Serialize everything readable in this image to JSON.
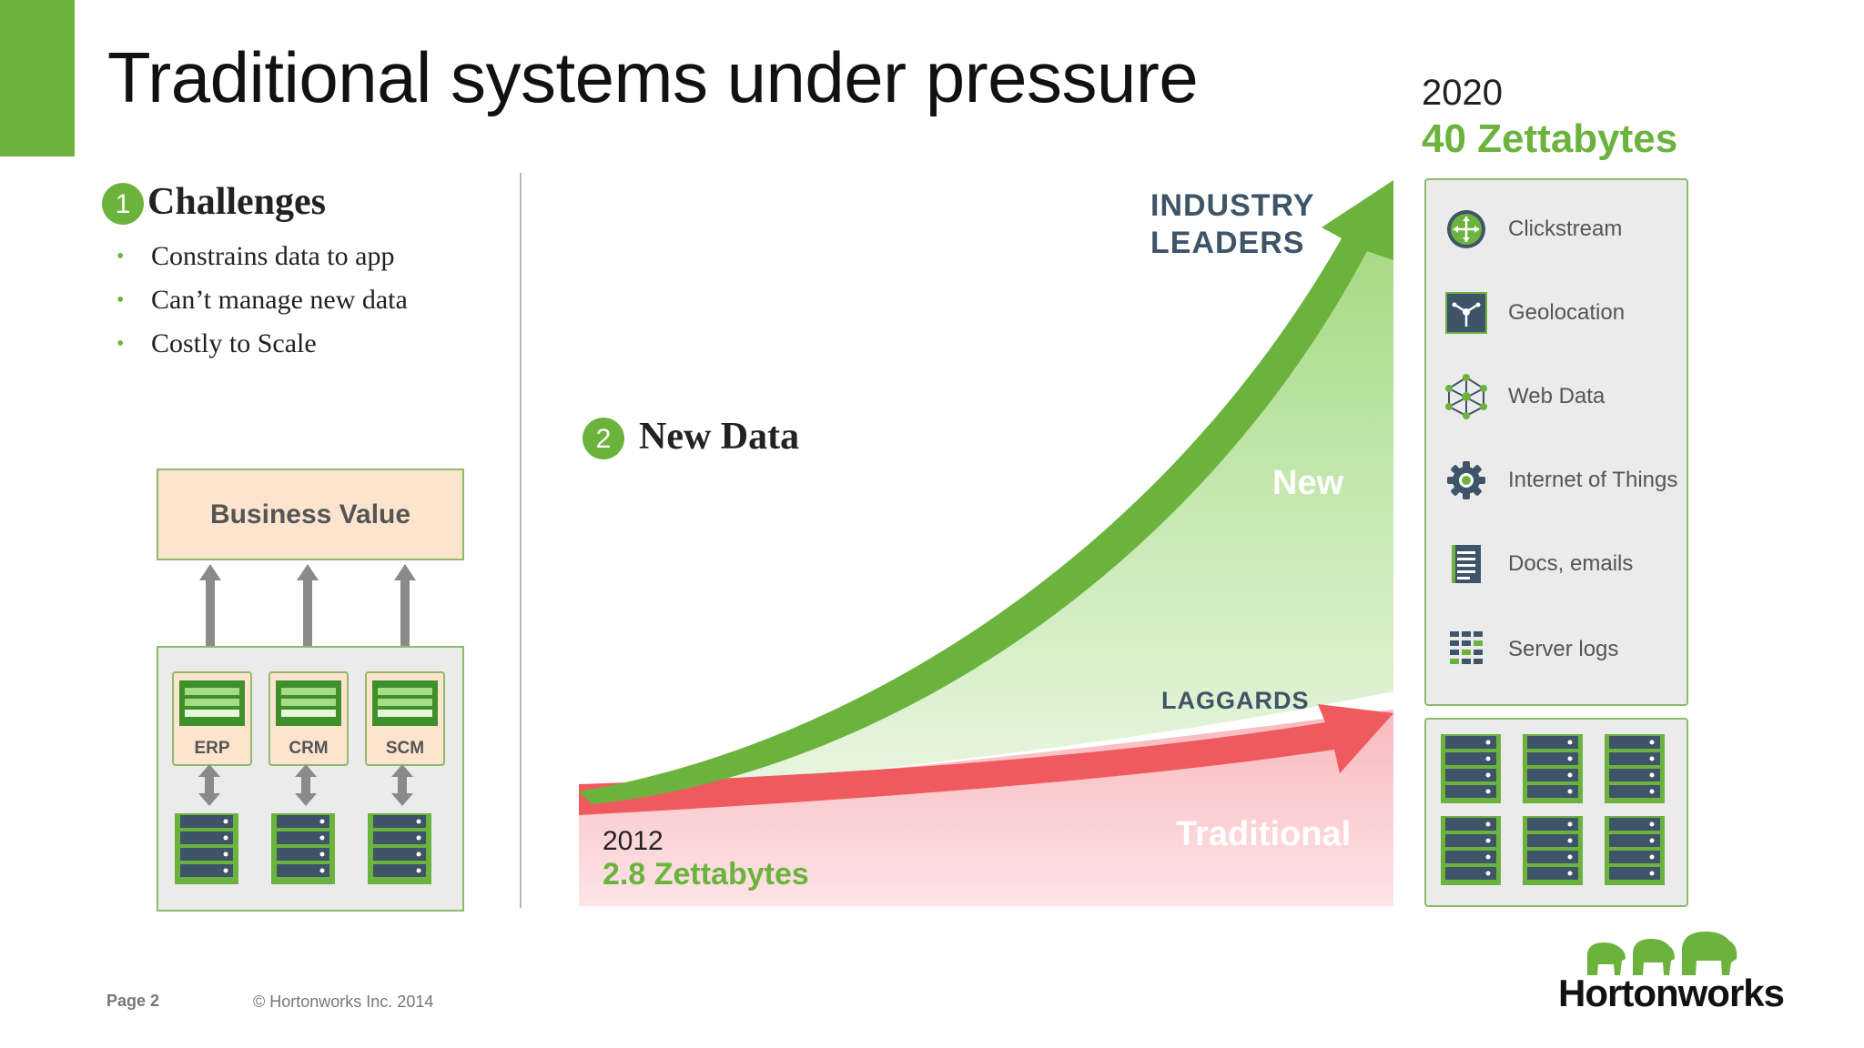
{
  "slide": {
    "title": "Traditional systems under pressure",
    "page_label": "Page",
    "page_number": "2",
    "copyright": "© Hortonworks Inc. 2014",
    "logo_text": "Hortonworks"
  },
  "challenges": {
    "badge": "1",
    "heading": "Challenges",
    "items": [
      "Constrains data to app",
      "Can’t manage new data",
      "Costly to Scale"
    ]
  },
  "architecture": {
    "business_value": "Business Value",
    "apps": [
      "ERP",
      "CRM",
      "SCM"
    ]
  },
  "new_data": {
    "badge": "2",
    "heading": "New Data",
    "start_year": "2012",
    "start_volume": "2.8 Zettabytes",
    "end_year": "2020",
    "end_volume": "40 Zettabytes",
    "leaders_line1": "INDUSTRY",
    "leaders_line2": "LEADERS",
    "laggards": "LAGGARDS",
    "new_label": "New",
    "traditional_label": "Traditional"
  },
  "data_sources": [
    {
      "label": "Clickstream",
      "icon": "clickstream-icon"
    },
    {
      "label": "Geolocation",
      "icon": "geolocation-icon"
    },
    {
      "label": "Web Data",
      "icon": "web-data-icon"
    },
    {
      "label": "Internet of Things",
      "icon": "gear-icon"
    },
    {
      "label": "Docs, emails",
      "icon": "document-icon"
    },
    {
      "label": "Server logs",
      "icon": "server-logs-icon"
    }
  ],
  "colors": {
    "accent_green": "#6cb33e",
    "laggard_red": "#ef5a5f",
    "label_slate": "#3e5468",
    "box_peach": "#fde4cf"
  }
}
